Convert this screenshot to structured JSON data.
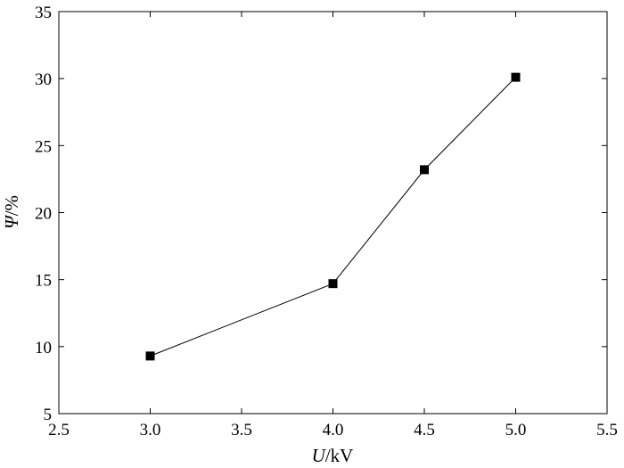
{
  "chart_data": {
    "type": "line",
    "title": "",
    "xlabel_italic": "U",
    "xlabel_unit": "/kV",
    "ylabel_italic": "Ψ",
    "ylabel_unit": "/%",
    "xlim": [
      2.5,
      5.5
    ],
    "ylim": [
      5,
      35
    ],
    "xticks": [
      "2.5",
      "3.0",
      "3.5",
      "4.0",
      "4.5",
      "5.0",
      "5.5"
    ],
    "yticks": [
      "5",
      "10",
      "15",
      "20",
      "25",
      "30",
      "35"
    ],
    "grid": false,
    "legend": false,
    "marker": "square",
    "series": [
      {
        "x": [
          3.0,
          4.0,
          4.5,
          5.0
        ],
        "y": [
          9.3,
          14.7,
          23.2,
          30.1
        ]
      }
    ],
    "colors": {
      "line": "#000000",
      "marker": "#000000"
    }
  }
}
